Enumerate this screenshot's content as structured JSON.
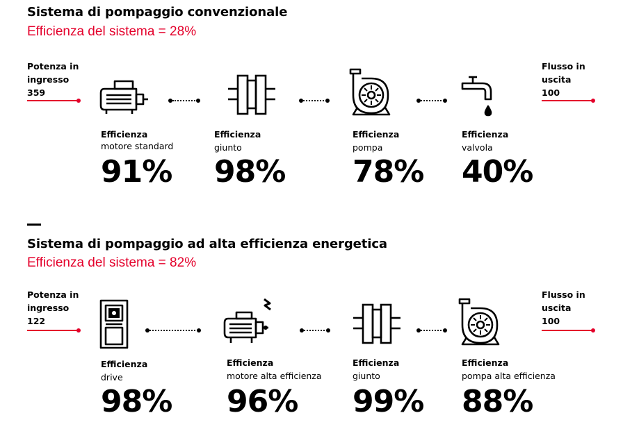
{
  "conventional": {
    "title": "Sistema di pompaggio convenzionale",
    "system_efficiency": "Efficienza del sistema = 28%",
    "input": {
      "label_line1": "Potenza in",
      "label_line2": "ingresso",
      "value": "359"
    },
    "output": {
      "label_line1": "Flusso in",
      "label_line2": "uscita",
      "value": "100"
    },
    "stages": [
      {
        "icon": "motor-icon",
        "label": "Efficienza",
        "name": "motore standard",
        "percent": "91%"
      },
      {
        "icon": "coupling-icon",
        "label": "Efficienza",
        "name": "giunto",
        "percent": "98%"
      },
      {
        "icon": "pump-icon",
        "label": "Efficienza",
        "name": "pompa",
        "percent": "78%"
      },
      {
        "icon": "valve-tap-icon",
        "label": "Efficienza",
        "name": "valvola",
        "percent": "40%"
      }
    ]
  },
  "high_efficiency": {
    "title": "Sistema di pompaggio ad alta efficienza energetica",
    "system_efficiency": "Efficienza del sistema = 82%",
    "input": {
      "label_line1": "Potenza in",
      "label_line2": "ingresso",
      "value": "122"
    },
    "output": {
      "label_line1": "Flusso in",
      "label_line2": "uscita",
      "value": "100"
    },
    "stages": [
      {
        "icon": "drive-icon",
        "label": "Efficienza",
        "name": "drive",
        "percent": "98%"
      },
      {
        "icon": "high-efficiency-motor-icon",
        "label": "Efficienza",
        "name": "motore alta efficienza",
        "percent": "96%"
      },
      {
        "icon": "coupling-icon",
        "label": "Efficienza",
        "name": "giunto",
        "percent": "99%"
      },
      {
        "icon": "high-efficiency-pump-icon",
        "label": "Efficienza",
        "name": "pompa alta efficienza",
        "percent": "88%"
      }
    ]
  },
  "colors": {
    "accent_red": "#e4002b",
    "text": "#000000"
  }
}
